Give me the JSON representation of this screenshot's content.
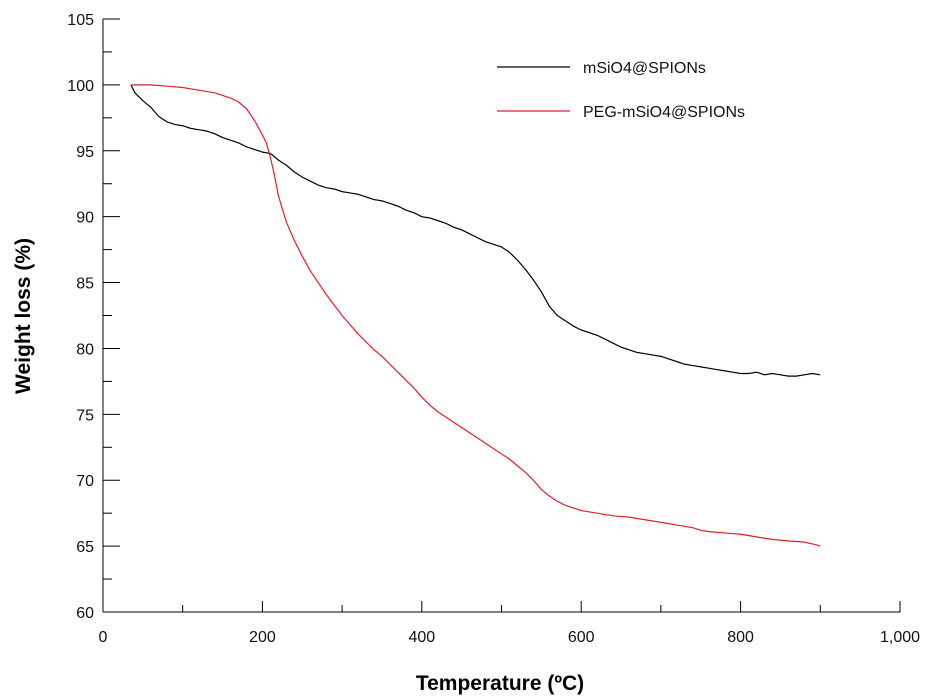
{
  "chart_data": {
    "type": "line",
    "title": "",
    "xlabel": "Temperature (ºC)",
    "ylabel": "Weight loss (%)",
    "xlim": [
      0,
      1000
    ],
    "ylim": [
      60,
      105
    ],
    "x_major_ticks": [
      0,
      200,
      400,
      600,
      800,
      1000
    ],
    "x_tick_labels": [
      "0",
      "200",
      "400",
      "600",
      "800",
      "1,000"
    ],
    "x_minor_step": 100,
    "y_major_ticks": [
      60,
      65,
      70,
      75,
      80,
      85,
      90,
      95,
      100,
      105
    ],
    "y_tick_labels": [
      "60",
      "65",
      "70",
      "75",
      "80",
      "85",
      "90",
      "95",
      "100",
      "105"
    ],
    "y_minor_step": 2.5,
    "grid": false,
    "legend_position": "top-right",
    "series": [
      {
        "name": "mSiO4@SPIONs",
        "color": "#000000",
        "points": [
          [
            35,
            100
          ],
          [
            40,
            99.4
          ],
          [
            50,
            98.8
          ],
          [
            60,
            98.3
          ],
          [
            70,
            97.6
          ],
          [
            80,
            97.2
          ],
          [
            90,
            97.0
          ],
          [
            100,
            96.9
          ],
          [
            110,
            96.7
          ],
          [
            120,
            96.6
          ],
          [
            130,
            96.5
          ],
          [
            140,
            96.3
          ],
          [
            150,
            96.0
          ],
          [
            160,
            95.8
          ],
          [
            170,
            95.6
          ],
          [
            180,
            95.3
          ],
          [
            190,
            95.1
          ],
          [
            200,
            94.9
          ],
          [
            210,
            94.8
          ],
          [
            220,
            94.3
          ],
          [
            230,
            93.9
          ],
          [
            240,
            93.4
          ],
          [
            250,
            93.0
          ],
          [
            260,
            92.7
          ],
          [
            270,
            92.4
          ],
          [
            280,
            92.2
          ],
          [
            290,
            92.1
          ],
          [
            300,
            91.9
          ],
          [
            310,
            91.8
          ],
          [
            320,
            91.7
          ],
          [
            330,
            91.5
          ],
          [
            340,
            91.3
          ],
          [
            350,
            91.2
          ],
          [
            360,
            91.0
          ],
          [
            370,
            90.8
          ],
          [
            380,
            90.5
          ],
          [
            390,
            90.3
          ],
          [
            400,
            90.0
          ],
          [
            410,
            89.9
          ],
          [
            420,
            89.7
          ],
          [
            430,
            89.5
          ],
          [
            440,
            89.2
          ],
          [
            450,
            89.0
          ],
          [
            460,
            88.7
          ],
          [
            470,
            88.4
          ],
          [
            480,
            88.1
          ],
          [
            490,
            87.9
          ],
          [
            500,
            87.7
          ],
          [
            510,
            87.3
          ],
          [
            520,
            86.7
          ],
          [
            530,
            86.0
          ],
          [
            540,
            85.2
          ],
          [
            550,
            84.3
          ],
          [
            560,
            83.2
          ],
          [
            570,
            82.5
          ],
          [
            580,
            82.1
          ],
          [
            590,
            81.7
          ],
          [
            600,
            81.4
          ],
          [
            610,
            81.2
          ],
          [
            620,
            81.0
          ],
          [
            630,
            80.7
          ],
          [
            640,
            80.4
          ],
          [
            650,
            80.1
          ],
          [
            660,
            79.9
          ],
          [
            670,
            79.7
          ],
          [
            680,
            79.6
          ],
          [
            690,
            79.5
          ],
          [
            700,
            79.4
          ],
          [
            710,
            79.2
          ],
          [
            720,
            79.0
          ],
          [
            730,
            78.8
          ],
          [
            740,
            78.7
          ],
          [
            750,
            78.6
          ],
          [
            760,
            78.5
          ],
          [
            770,
            78.4
          ],
          [
            780,
            78.3
          ],
          [
            790,
            78.2
          ],
          [
            800,
            78.1
          ],
          [
            810,
            78.1
          ],
          [
            820,
            78.2
          ],
          [
            830,
            78.0
          ],
          [
            840,
            78.1
          ],
          [
            850,
            78.0
          ],
          [
            860,
            77.9
          ],
          [
            870,
            77.9
          ],
          [
            880,
            78.0
          ],
          [
            890,
            78.1
          ],
          [
            900,
            78.0
          ]
        ]
      },
      {
        "name": "PEG-mSiO4@SPIONs",
        "color": "#e0202a",
        "points": [
          [
            35,
            100
          ],
          [
            60,
            100
          ],
          [
            80,
            99.9
          ],
          [
            100,
            99.8
          ],
          [
            120,
            99.6
          ],
          [
            140,
            99.4
          ],
          [
            160,
            99.0
          ],
          [
            170,
            98.7
          ],
          [
            180,
            98.2
          ],
          [
            190,
            97.3
          ],
          [
            200,
            96.2
          ],
          [
            205,
            95.6
          ],
          [
            210,
            94.5
          ],
          [
            215,
            93.2
          ],
          [
            220,
            91.6
          ],
          [
            230,
            89.6
          ],
          [
            240,
            88.2
          ],
          [
            250,
            87.0
          ],
          [
            260,
            85.9
          ],
          [
            270,
            85.0
          ],
          [
            280,
            84.1
          ],
          [
            290,
            83.3
          ],
          [
            300,
            82.5
          ],
          [
            310,
            81.8
          ],
          [
            320,
            81.1
          ],
          [
            330,
            80.5
          ],
          [
            340,
            79.9
          ],
          [
            350,
            79.4
          ],
          [
            360,
            78.8
          ],
          [
            370,
            78.2
          ],
          [
            380,
            77.6
          ],
          [
            390,
            77.0
          ],
          [
            400,
            76.3
          ],
          [
            410,
            75.7
          ],
          [
            420,
            75.2
          ],
          [
            430,
            74.8
          ],
          [
            440,
            74.4
          ],
          [
            450,
            74.0
          ],
          [
            460,
            73.6
          ],
          [
            470,
            73.2
          ],
          [
            480,
            72.8
          ],
          [
            490,
            72.4
          ],
          [
            500,
            72.0
          ],
          [
            510,
            71.6
          ],
          [
            520,
            71.1
          ],
          [
            530,
            70.6
          ],
          [
            540,
            70.0
          ],
          [
            550,
            69.3
          ],
          [
            560,
            68.8
          ],
          [
            570,
            68.4
          ],
          [
            580,
            68.1
          ],
          [
            590,
            67.9
          ],
          [
            600,
            67.7
          ],
          [
            620,
            67.5
          ],
          [
            640,
            67.3
          ],
          [
            660,
            67.2
          ],
          [
            680,
            67.0
          ],
          [
            700,
            66.8
          ],
          [
            720,
            66.6
          ],
          [
            740,
            66.4
          ],
          [
            750,
            66.2
          ],
          [
            760,
            66.1
          ],
          [
            780,
            66.0
          ],
          [
            800,
            65.9
          ],
          [
            820,
            65.7
          ],
          [
            840,
            65.5
          ],
          [
            860,
            65.4
          ],
          [
            880,
            65.3
          ],
          [
            895,
            65.1
          ],
          [
            900,
            65.0
          ]
        ]
      }
    ]
  }
}
